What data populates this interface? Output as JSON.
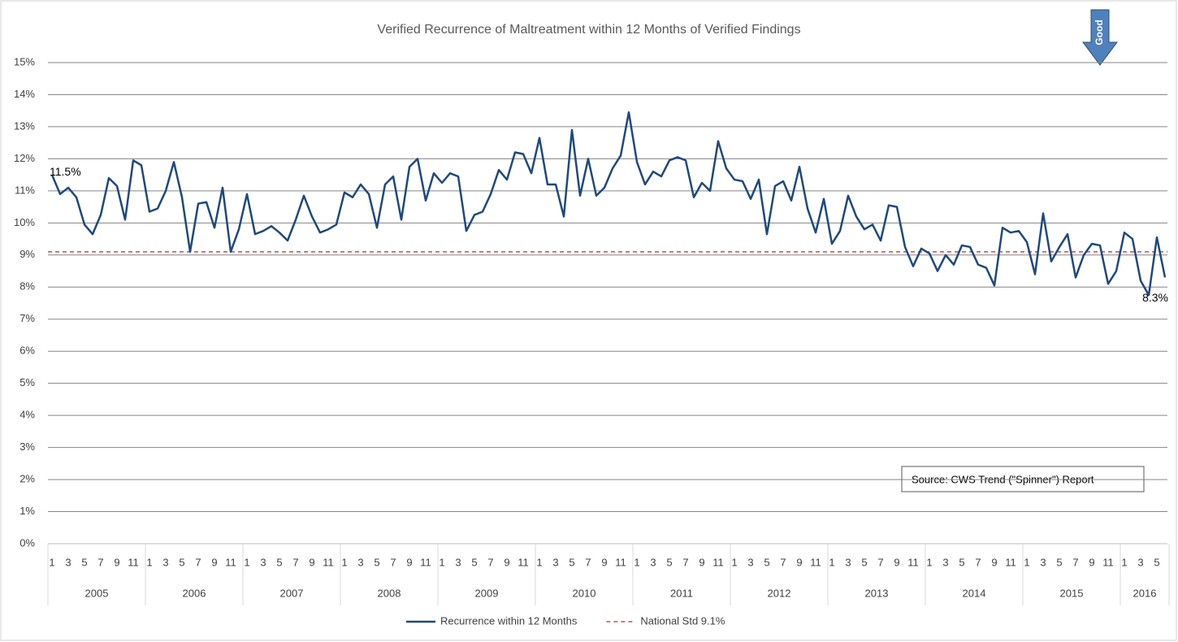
{
  "chart_data": {
    "type": "line",
    "title": "Verified Recurrence of Maltreatment within 12 Months of Verified Findings",
    "categories": [
      "1",
      null,
      "3",
      null,
      "5",
      null,
      "7",
      null,
      "9",
      null,
      "11",
      null,
      "1",
      null,
      "3",
      null,
      "5",
      null,
      "7",
      null,
      "9",
      null,
      "11",
      null,
      "1",
      null,
      "3",
      null,
      "5",
      null,
      "7",
      null,
      "9",
      null,
      "11",
      null,
      "1",
      null,
      "3",
      null,
      "5",
      null,
      "7",
      null,
      "9",
      null,
      "11",
      null,
      "1",
      null,
      "3",
      null,
      "5",
      null,
      "7",
      null,
      "9",
      null,
      "11",
      null,
      "1",
      null,
      "3",
      null,
      "5",
      null,
      "7",
      null,
      "9",
      null,
      "11",
      null,
      "1",
      null,
      "3",
      null,
      "5",
      null,
      "7",
      null,
      "9",
      null,
      "11",
      null,
      "1",
      null,
      "3",
      null,
      "5",
      null,
      "7",
      null,
      "9",
      null,
      "11",
      null,
      "1",
      null,
      "3",
      null,
      "5",
      null,
      "7",
      null,
      "9",
      null,
      "11",
      null,
      "1",
      null,
      "3",
      null,
      "5",
      null,
      "7",
      null,
      "9",
      null,
      "11",
      null,
      "1",
      null,
      "3",
      null,
      "5",
      null,
      "7",
      null,
      "9",
      null,
      "11",
      null,
      "1",
      null,
      "3",
      null,
      "5",
      null
    ],
    "years": [
      "2005",
      "2006",
      "2007",
      "2008",
      "2009",
      "2010",
      "2011",
      "2012",
      "2013",
      "2014",
      "2015",
      "2016"
    ],
    "series": [
      {
        "name": "Recurrence within 12 Months",
        "color": "#1f497d",
        "values": [
          11.5,
          10.9,
          11.1,
          10.8,
          9.95,
          9.65,
          10.25,
          11.4,
          11.15,
          10.1,
          11.95,
          11.8,
          10.35,
          10.45,
          11.0,
          11.9,
          10.8,
          9.1,
          10.6,
          10.65,
          9.85,
          11.1,
          9.1,
          9.8,
          10.9,
          9.65,
          9.75,
          9.9,
          9.7,
          9.45,
          10.1,
          10.85,
          10.2,
          9.7,
          9.8,
          9.95,
          10.95,
          10.8,
          11.2,
          10.9,
          9.85,
          11.2,
          11.45,
          10.1,
          11.75,
          12.0,
          10.7,
          11.55,
          11.25,
          11.55,
          11.45,
          9.75,
          10.25,
          10.35,
          10.9,
          11.65,
          11.35,
          12.2,
          12.15,
          11.55,
          12.65,
          11.2,
          11.2,
          10.2,
          12.9,
          10.85,
          12.0,
          10.85,
          11.1,
          11.7,
          12.1,
          13.45,
          11.9,
          11.2,
          11.6,
          11.45,
          11.95,
          12.05,
          11.95,
          10.8,
          11.25,
          11.0,
          12.55,
          11.7,
          11.35,
          11.3,
          10.75,
          11.35,
          9.65,
          11.15,
          11.3,
          10.7,
          11.75,
          10.45,
          9.7,
          10.75,
          9.35,
          9.75,
          10.85,
          10.2,
          9.8,
          9.95,
          9.45,
          10.55,
          10.5,
          9.25,
          8.65,
          9.2,
          9.05,
          8.5,
          9.0,
          8.7,
          9.3,
          9.25,
          8.7,
          8.6,
          8.05,
          9.85,
          9.7,
          9.75,
          9.4,
          8.4,
          10.3,
          8.8,
          9.25,
          9.65,
          8.3,
          9.0,
          9.35,
          9.3,
          8.1,
          8.5,
          9.7,
          9.5,
          8.2,
          7.75,
          9.55,
          8.3
        ],
        "value_labels": [
          "11.5%",
          null,
          null,
          null,
          null,
          null,
          null,
          null,
          null,
          null,
          null,
          null,
          null,
          null,
          null,
          null,
          null,
          null,
          null,
          null,
          null,
          null,
          null,
          null,
          null,
          null,
          null,
          null,
          null,
          null,
          null,
          null,
          null,
          null,
          null,
          null,
          null,
          null,
          null,
          null,
          null,
          null,
          null,
          null,
          null,
          null,
          null,
          null,
          null,
          null,
          null,
          null,
          null,
          null,
          null,
          null,
          null,
          null,
          null,
          null,
          null,
          null,
          null,
          null,
          null,
          null,
          null,
          null,
          null,
          null,
          null,
          null,
          null,
          null,
          null,
          null,
          null,
          null,
          null,
          null,
          null,
          null,
          null,
          null,
          null,
          null,
          null,
          null,
          null,
          null,
          null,
          null,
          null,
          null,
          null,
          null,
          null,
          null,
          null,
          null,
          null,
          null,
          null,
          null,
          null,
          null,
          null,
          null,
          null,
          null,
          null,
          null,
          null,
          null,
          null,
          null,
          null,
          null,
          null,
          null,
          null,
          null,
          null,
          null,
          null,
          null,
          null,
          null,
          null,
          null,
          null,
          null,
          null,
          null,
          null,
          null,
          null,
          "8.3%"
        ]
      }
    ],
    "reference_lines": [
      {
        "name": "National Std 9.1%",
        "value": 9.1,
        "color": "#c0504d",
        "dashed": true
      }
    ],
    "ylim": [
      0,
      15
    ],
    "yticks": [
      {
        "value": 0,
        "label": "0%"
      },
      {
        "value": 1,
        "label": "1%"
      },
      {
        "value": 2,
        "label": "2%"
      },
      {
        "value": 3,
        "label": "3%"
      },
      {
        "value": 4,
        "label": "4%"
      },
      {
        "value": 5,
        "label": "5%"
      },
      {
        "value": 6,
        "label": "6%"
      },
      {
        "value": 7,
        "label": "7%"
      },
      {
        "value": 8,
        "label": "8%"
      },
      {
        "value": 9,
        "label": "9%"
      },
      {
        "value": 10,
        "label": "10%"
      },
      {
        "value": 11,
        "label": "11%"
      },
      {
        "value": 12,
        "label": "12%"
      },
      {
        "value": 13,
        "label": "13%"
      },
      {
        "value": 14,
        "label": "14%"
      },
      {
        "value": 15,
        "label": "15%"
      }
    ],
    "grid": true,
    "annotations": [
      "Source: CWS Trend (\"Spinner\") Report",
      "Good"
    ]
  }
}
